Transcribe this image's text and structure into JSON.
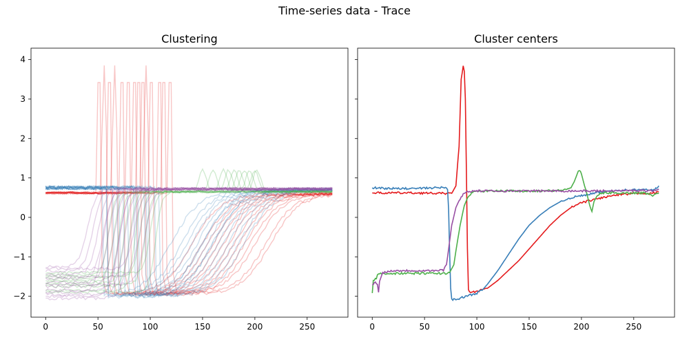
{
  "figure": {
    "title": "Time-series data - Trace"
  },
  "colors": {
    "red": "#e41a1c",
    "blue": "#377eb8",
    "green": "#4daf4a",
    "purple": "#984ea3"
  },
  "chart_data": [
    {
      "type": "line",
      "title": "Clustering",
      "xlabel": "",
      "ylabel": "",
      "xlim": [
        -14,
        289
      ],
      "ylim": [
        -2.53,
        4.29
      ],
      "xticks": [
        0,
        50,
        100,
        150,
        200,
        250
      ],
      "yticks": [
        -2,
        -1,
        0,
        1,
        2,
        3,
        4
      ],
      "grid": false,
      "series_groups": [
        {
          "cluster": "red",
          "color": "#e41a1c",
          "alpha": 0.25,
          "count": 14,
          "baseline": 0.62,
          "spike_peak": 3.85,
          "spike_x": [
            50,
            55,
            60,
            65,
            72,
            78,
            84,
            88,
            92,
            95,
            100,
            108,
            112,
            118
          ],
          "drop_level": -1.95,
          "recovery_midpoint_x": [
            140,
            150,
            155,
            160,
            165,
            170,
            175,
            180,
            185,
            190,
            195,
            200,
            210,
            215
          ],
          "plateau": 0.6
        },
        {
          "cluster": "blue",
          "color": "#377eb8",
          "alpha": 0.25,
          "count": 16,
          "baseline": 0.75,
          "drop_x": [
            55,
            60,
            65,
            70,
            75,
            80,
            85,
            90,
            95,
            100,
            105,
            110,
            60,
            72,
            88,
            98
          ],
          "drop_level": -2.0,
          "recovery_midpoint_x": [
            120,
            130,
            135,
            140,
            145,
            150,
            155,
            160,
            165,
            170,
            175,
            180,
            185,
            190,
            150,
            160
          ],
          "plateau": 0.7
        },
        {
          "cluster": "green",
          "color": "#4daf4a",
          "alpha": 0.25,
          "count": 10,
          "start_levels": [
            -1.45,
            -1.55,
            -1.6,
            -1.65,
            -1.75,
            -1.85,
            -1.5,
            -1.7,
            -1.4,
            -1.9
          ],
          "rise_x": [
            60,
            65,
            70,
            75,
            80,
            85,
            90,
            95,
            100,
            105
          ],
          "plateau": 0.65,
          "bump_x": [
            150,
            160,
            170,
            175,
            180,
            185,
            190,
            195,
            200,
            202
          ],
          "bump_height": 1.2
        },
        {
          "cluster": "purple",
          "color": "#984ea3",
          "alpha": 0.25,
          "count": 14,
          "start_levels": [
            -1.25,
            -1.35,
            -1.45,
            -1.55,
            -1.65,
            -1.75,
            -1.85,
            -1.95,
            -2.05,
            -1.3,
            -1.5,
            -1.7,
            -1.9,
            -2.0
          ],
          "rise_x": [
            40,
            45,
            50,
            55,
            60,
            65,
            70,
            75,
            80,
            85,
            90,
            95,
            55,
            70
          ],
          "plateau": 0.72
        }
      ]
    },
    {
      "type": "line",
      "title": "Cluster centers",
      "xlabel": "",
      "ylabel": "",
      "xlim": [
        -14,
        289
      ],
      "ylim": [
        -2.53,
        4.29
      ],
      "xticks": [
        0,
        50,
        100,
        150,
        200,
        250
      ],
      "yticks": [
        -2,
        -1,
        0,
        1,
        2,
        3,
        4
      ],
      "grid": false,
      "series": [
        {
          "cluster": "red",
          "color": "#e41a1c",
          "points": [
            [
              0,
              0.62
            ],
            [
              20,
              0.62
            ],
            [
              40,
              0.62
            ],
            [
              60,
              0.61
            ],
            [
              76,
              0.61
            ],
            [
              80,
              0.8
            ],
            [
              83,
              1.8
            ],
            [
              85,
              3.5
            ],
            [
              87,
              3.82
            ],
            [
              88,
              3.7
            ],
            [
              89,
              3.0
            ],
            [
              90,
              1.2
            ],
            [
              91,
              -0.8
            ],
            [
              92,
              -1.85
            ],
            [
              95,
              -1.9
            ],
            [
              100,
              -1.88
            ],
            [
              110,
              -1.8
            ],
            [
              120,
              -1.6
            ],
            [
              130,
              -1.35
            ],
            [
              140,
              -1.1
            ],
            [
              150,
              -0.8
            ],
            [
              160,
              -0.5
            ],
            [
              170,
              -0.2
            ],
            [
              180,
              0.05
            ],
            [
              190,
              0.25
            ],
            [
              200,
              0.37
            ],
            [
              210,
              0.44
            ],
            [
              220,
              0.5
            ],
            [
              230,
              0.55
            ],
            [
              240,
              0.58
            ],
            [
              250,
              0.6
            ],
            [
              260,
              0.62
            ],
            [
              265,
              0.6
            ],
            [
              270,
              0.62
            ],
            [
              274,
              0.65
            ]
          ]
        },
        {
          "cluster": "blue",
          "color": "#377eb8",
          "points": [
            [
              0,
              0.75
            ],
            [
              20,
              0.73
            ],
            [
              40,
              0.73
            ],
            [
              60,
              0.75
            ],
            [
              70,
              0.76
            ],
            [
              72,
              0.7
            ],
            [
              73,
              0.2
            ],
            [
              74,
              -0.9
            ],
            [
              75,
              -1.8
            ],
            [
              76,
              -2.08
            ],
            [
              80,
              -2.08
            ],
            [
              90,
              -2.0
            ],
            [
              100,
              -1.92
            ],
            [
              105,
              -1.85
            ],
            [
              110,
              -1.7
            ],
            [
              120,
              -1.35
            ],
            [
              130,
              -0.95
            ],
            [
              140,
              -0.55
            ],
            [
              150,
              -0.2
            ],
            [
              160,
              0.05
            ],
            [
              170,
              0.25
            ],
            [
              180,
              0.4
            ],
            [
              190,
              0.5
            ],
            [
              200,
              0.55
            ],
            [
              210,
              0.6
            ],
            [
              220,
              0.65
            ],
            [
              230,
              0.68
            ],
            [
              240,
              0.69
            ],
            [
              250,
              0.7
            ],
            [
              260,
              0.7
            ],
            [
              270,
              0.7
            ],
            [
              274,
              0.8
            ]
          ]
        },
        {
          "cluster": "green",
          "color": "#4daf4a",
          "points": [
            [
              0,
              -1.92
            ],
            [
              1,
              -1.6
            ],
            [
              4,
              -1.55
            ],
            [
              5,
              -1.45
            ],
            [
              10,
              -1.42
            ],
            [
              20,
              -1.42
            ],
            [
              40,
              -1.42
            ],
            [
              60,
              -1.42
            ],
            [
              70,
              -1.42
            ],
            [
              74,
              -1.4
            ],
            [
              78,
              -1.2
            ],
            [
              80,
              -0.85
            ],
            [
              84,
              -0.2
            ],
            [
              88,
              0.3
            ],
            [
              92,
              0.55
            ],
            [
              96,
              0.63
            ],
            [
              100,
              0.66
            ],
            [
              120,
              0.67
            ],
            [
              150,
              0.67
            ],
            [
              180,
              0.68
            ],
            [
              190,
              0.75
            ],
            [
              193,
              0.9
            ],
            [
              196,
              1.1
            ],
            [
              198,
              1.2
            ],
            [
              200,
              1.1
            ],
            [
              203,
              0.8
            ],
            [
              205,
              0.62
            ],
            [
              207,
              0.4
            ],
            [
              209,
              0.2
            ],
            [
              210,
              0.15
            ],
            [
              212,
              0.4
            ],
            [
              215,
              0.55
            ],
            [
              220,
              0.62
            ],
            [
              240,
              0.62
            ],
            [
              260,
              0.62
            ],
            [
              268,
              0.56
            ],
            [
              274,
              0.62
            ]
          ]
        },
        {
          "cluster": "purple",
          "color": "#984ea3",
          "points": [
            [
              0,
              -1.73
            ],
            [
              3,
              -1.63
            ],
            [
              5,
              -1.7
            ],
            [
              6,
              -1.9
            ],
            [
              7,
              -1.62
            ],
            [
              10,
              -1.4
            ],
            [
              20,
              -1.35
            ],
            [
              40,
              -1.35
            ],
            [
              60,
              -1.35
            ],
            [
              68,
              -1.34
            ],
            [
              71,
              -1.2
            ],
            [
              73,
              -0.8
            ],
            [
              76,
              -0.2
            ],
            [
              80,
              0.25
            ],
            [
              84,
              0.48
            ],
            [
              88,
              0.62
            ],
            [
              92,
              0.66
            ],
            [
              100,
              0.67
            ],
            [
              130,
              0.67
            ],
            [
              160,
              0.67
            ],
            [
              190,
              0.67
            ],
            [
              220,
              0.67
            ],
            [
              250,
              0.68
            ],
            [
              270,
              0.68
            ],
            [
              274,
              0.72
            ]
          ]
        }
      ]
    }
  ]
}
